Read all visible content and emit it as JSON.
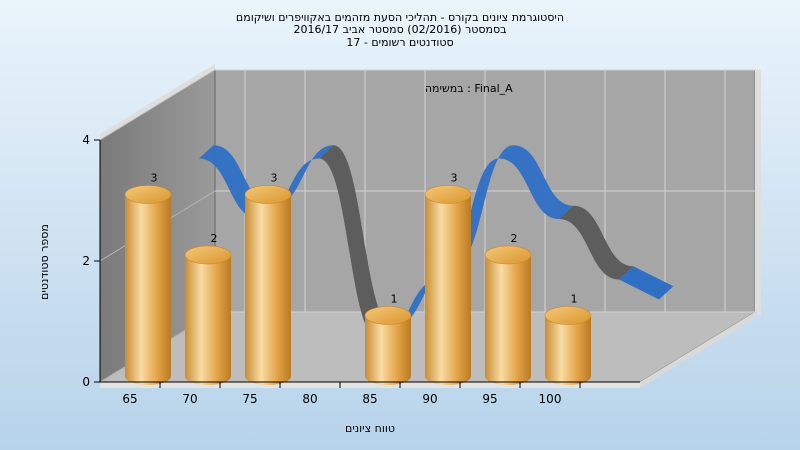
{
  "chart_data": {
    "type": "bar",
    "title_lines": [
      "היסטוגרמת ציונים בקורס - תהליכי הסעת מזהמים באקוויפרים ושיקומם",
      "בסמסטר  (02/2016)  סמסטר אביב 2016/17",
      "סטודנטים רשומים - 17"
    ],
    "annotation": "Final_A : במשימה",
    "categories": [
      "65",
      "70",
      "75",
      "80",
      "85",
      "90",
      "95",
      "100"
    ],
    "values": [
      3,
      2,
      3,
      0,
      1,
      3,
      2,
      1
    ],
    "y_ticks": [
      "0",
      "2",
      "4"
    ],
    "ylim": [
      0,
      4
    ],
    "xlabel": "טווח ציונים",
    "ylabel": "מספר סטודנטים",
    "grid": true,
    "colors": {
      "bar_light": "#f7d9a0",
      "bar_mid": "#e6a84a",
      "bar_dark": "#b97a22",
      "ribbon_blue": "#2f6fc4",
      "ribbon_gray": "#595959",
      "back_wall": "#a6a6a6",
      "side_wall": "#8c8c8c",
      "floor": "#bdbdbd"
    }
  }
}
